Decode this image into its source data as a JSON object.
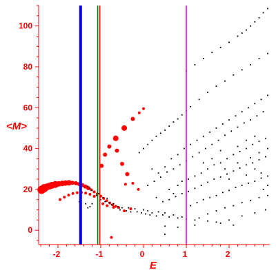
{
  "chart_data": {
    "type": "scatter",
    "title": "",
    "xlabel": "E",
    "ylabel": "<M>",
    "xlim": [
      -2.45,
      2.95
    ],
    "ylim": [
      -7,
      110
    ],
    "xticks": [
      -2,
      -1,
      0,
      1,
      2
    ],
    "xtick_labels": [
      "-2",
      "-1",
      "0",
      "1",
      "2"
    ],
    "yticks": [
      0,
      20,
      40,
      60,
      80,
      100
    ],
    "ytick_labels": [
      "0",
      "20",
      "40",
      "60",
      "80",
      "100"
    ],
    "grid": false,
    "legend": "none",
    "colors": {
      "axis": "#ff0000",
      "text": "#ff0000",
      "blue_line": "#0000ff",
      "green_line": "#008000",
      "red_line": "#ff0000",
      "magenta_line": "#ff00ff",
      "black_points": "#000000",
      "red_points": "#ff0000"
    },
    "vertical_lines": [
      {
        "x": -1.47,
        "color": "#0000ff",
        "width": "thick"
      },
      {
        "x": -1.07,
        "color": "#008000",
        "width": "thin"
      },
      {
        "x": -1.02,
        "color": "#ff0000",
        "width": "thin"
      },
      {
        "x": 1.0,
        "color": "#ff00ff",
        "width": "thin"
      }
    ],
    "series": [
      {
        "color": "#ff0000",
        "style": "markers of varying size",
        "points": [
          [
            -2.38,
            19.8,
            6
          ],
          [
            -2.32,
            20.6,
            6
          ],
          [
            -2.26,
            21.2,
            5
          ],
          [
            -2.2,
            21.6,
            5
          ],
          [
            -2.14,
            22.0,
            5
          ],
          [
            -2.06,
            22.4,
            5
          ],
          [
            -1.98,
            22.7,
            4
          ],
          [
            -1.9,
            22.9,
            4
          ],
          [
            -1.82,
            23.1,
            4
          ],
          [
            -1.74,
            23.2,
            4
          ],
          [
            -1.66,
            23.2,
            3
          ],
          [
            -1.58,
            23.0,
            3
          ],
          [
            -1.5,
            22.6,
            3
          ],
          [
            -1.43,
            22.1,
            3
          ],
          [
            -1.36,
            21.4,
            3
          ],
          [
            -1.29,
            20.6,
            3
          ],
          [
            -1.22,
            19.8,
            2
          ],
          [
            -1.15,
            18.8,
            2
          ],
          [
            -1.08,
            17.8,
            2
          ],
          [
            -1.0,
            16.7,
            2
          ],
          [
            -0.93,
            15.6,
            2
          ],
          [
            -0.86,
            14.5,
            2
          ],
          [
            -0.79,
            13.4,
            2
          ],
          [
            -0.72,
            12.5,
            2
          ],
          [
            -0.65,
            11.7,
            2
          ],
          [
            -0.58,
            11.1,
            2
          ],
          [
            -1.95,
            15.0,
            2
          ],
          [
            -1.85,
            16.2,
            2
          ],
          [
            -1.75,
            17.2,
            2
          ],
          [
            -1.65,
            18.0,
            2
          ],
          [
            -1.55,
            18.4,
            2
          ],
          [
            -1.45,
            18.5,
            2
          ],
          [
            -1.35,
            18.2,
            2
          ],
          [
            -1.25,
            17.6,
            2
          ],
          [
            -1.15,
            16.6,
            2
          ],
          [
            -0.98,
            31.5,
            3
          ],
          [
            -0.9,
            37.0,
            3
          ],
          [
            -0.8,
            41.0,
            3
          ],
          [
            -0.65,
            45.0,
            4
          ],
          [
            -0.45,
            50.0,
            4
          ],
          [
            -0.25,
            54.5,
            3
          ],
          [
            -0.1,
            57.5,
            2
          ],
          [
            0.0,
            59.5,
            2
          ],
          [
            -0.62,
            39.0,
            3
          ],
          [
            -0.5,
            32.5,
            3
          ],
          [
            -0.38,
            27.5,
            3
          ],
          [
            -0.25,
            23.0,
            2
          ],
          [
            -0.12,
            20.0,
            2
          ],
          [
            -0.95,
            13.0,
            2
          ],
          [
            -0.85,
            12.0,
            2
          ],
          [
            -0.7,
            11.2,
            2
          ],
          [
            -0.45,
            9.5,
            2
          ],
          [
            -0.75,
            -3.5,
            2
          ],
          [
            -0.3,
            10.5,
            2
          ],
          [
            -0.42,
            22.5,
            2
          ]
        ]
      },
      {
        "color": "#000000",
        "style": "small dots",
        "points": [
          [
            -1.3,
            21.5
          ],
          [
            -1.25,
            20.5
          ],
          [
            -1.2,
            19.5
          ],
          [
            -1.1,
            17.0
          ],
          [
            -1.05,
            18.0
          ],
          [
            -1.0,
            15.0
          ],
          [
            -0.95,
            16.0
          ],
          [
            -0.9,
            14.0
          ],
          [
            -0.85,
            15.5
          ],
          [
            -0.8,
            13.5
          ],
          [
            -0.75,
            12.5
          ],
          [
            -0.7,
            13.0
          ],
          [
            -0.6,
            11.5
          ],
          [
            -0.55,
            10.0
          ],
          [
            -0.5,
            11.0
          ],
          [
            -0.4,
            9.5
          ],
          [
            -0.35,
            11.0
          ],
          [
            -0.3,
            9.0
          ],
          [
            -0.2,
            10.5
          ],
          [
            -0.15,
            9.0
          ],
          [
            -0.05,
            8.5
          ],
          [
            0.0,
            10.0
          ],
          [
            0.05,
            8.0
          ],
          [
            0.1,
            9.5
          ],
          [
            0.15,
            7.5
          ],
          [
            0.2,
            8.5
          ],
          [
            0.3,
            7.0
          ],
          [
            0.35,
            9.0
          ],
          [
            0.45,
            7.5
          ],
          [
            0.5,
            8.5
          ],
          [
            0.6,
            6.5
          ],
          [
            0.7,
            7.5
          ],
          [
            0.8,
            6.0
          ],
          [
            0.9,
            6.5
          ],
          [
            1.0,
            5.5
          ],
          [
            1.2,
            5.0
          ],
          [
            1.5,
            4.5
          ],
          [
            1.8,
            3.5
          ],
          [
            2.1,
            2.5
          ],
          [
            -1.35,
            13.0
          ],
          [
            -1.3,
            11.0
          ],
          [
            -1.5,
            14.0
          ],
          [
            -1.25,
            11.5
          ],
          [
            -1.2,
            13.0
          ],
          [
            -0.1,
            38.0
          ],
          [
            0.0,
            40.0
          ],
          [
            0.1,
            42.0
          ],
          [
            0.2,
            44.0
          ],
          [
            0.3,
            46.0
          ],
          [
            0.4,
            47.5
          ],
          [
            0.5,
            49.0
          ],
          [
            0.6,
            51.0
          ],
          [
            0.7,
            53.0
          ],
          [
            0.8,
            54.5
          ],
          [
            0.9,
            56.5
          ],
          [
            1.0,
            58.5
          ],
          [
            1.1,
            60.5
          ],
          [
            1.3,
            64.0
          ],
          [
            1.5,
            67.5
          ],
          [
            1.7,
            70.5
          ],
          [
            1.9,
            73.0
          ],
          [
            2.1,
            76.0
          ],
          [
            2.3,
            78.5
          ],
          [
            2.5,
            81.0
          ],
          [
            2.7,
            84.0
          ],
          [
            2.9,
            86.5
          ],
          [
            1.0,
            78.0
          ],
          [
            1.2,
            81.0
          ],
          [
            1.4,
            84.0
          ],
          [
            1.6,
            87.0
          ],
          [
            1.8,
            89.5
          ],
          [
            2.0,
            92.0
          ],
          [
            2.2,
            95.0
          ],
          [
            2.4,
            98.0
          ],
          [
            2.5,
            100.0
          ],
          [
            2.6,
            102.0
          ],
          [
            2.7,
            104.0
          ],
          [
            2.8,
            106.5
          ],
          [
            2.9,
            108.5
          ],
          [
            2.3,
            96.5
          ],
          [
            0.2,
            30.0
          ],
          [
            0.35,
            28.0
          ],
          [
            0.5,
            31.0
          ],
          [
            0.65,
            35.0
          ],
          [
            0.8,
            37.0
          ],
          [
            0.95,
            40.0
          ],
          [
            1.1,
            42.0
          ],
          [
            1.25,
            44.0
          ],
          [
            1.4,
            46.0
          ],
          [
            1.55,
            48.0
          ],
          [
            1.7,
            50.0
          ],
          [
            1.85,
            52.0
          ],
          [
            2.0,
            54.0
          ],
          [
            2.15,
            56.0
          ],
          [
            2.3,
            58.0
          ],
          [
            2.45,
            60.0
          ],
          [
            2.6,
            62.0
          ],
          [
            2.75,
            64.0
          ],
          [
            2.9,
            66.0
          ],
          [
            0.1,
            22.0
          ],
          [
            0.25,
            24.0
          ],
          [
            0.4,
            26.0
          ],
          [
            0.55,
            28.5
          ],
          [
            0.7,
            30.0
          ],
          [
            0.85,
            32.0
          ],
          [
            1.0,
            34.0
          ],
          [
            1.15,
            36.0
          ],
          [
            1.3,
            38.0
          ],
          [
            1.45,
            40.0
          ],
          [
            1.6,
            42.0
          ],
          [
            1.75,
            44.0
          ],
          [
            1.9,
            46.5
          ],
          [
            2.05,
            48.5
          ],
          [
            2.2,
            50.5
          ],
          [
            2.35,
            52.5
          ],
          [
            2.5,
            54.0
          ],
          [
            2.65,
            56.0
          ],
          [
            2.8,
            58.0
          ],
          [
            0.6,
            20.0
          ],
          [
            0.7,
            18.0
          ],
          [
            0.8,
            22.0
          ],
          [
            0.9,
            24.0
          ],
          [
            1.05,
            25.0
          ],
          [
            1.2,
            26.5
          ],
          [
            1.35,
            28.0
          ],
          [
            1.5,
            30.0
          ],
          [
            1.65,
            32.0
          ],
          [
            1.8,
            33.0
          ],
          [
            1.95,
            35.0
          ],
          [
            2.1,
            37.0
          ],
          [
            2.25,
            38.5
          ],
          [
            2.4,
            40.0
          ],
          [
            2.55,
            42.0
          ],
          [
            2.7,
            43.5
          ],
          [
            2.85,
            45.0
          ],
          [
            0.3,
            16.0
          ],
          [
            0.45,
            14.0
          ],
          [
            0.6,
            15.0
          ],
          [
            0.75,
            16.5
          ],
          [
            0.9,
            18.0
          ],
          [
            1.05,
            19.0
          ],
          [
            1.2,
            20.5
          ],
          [
            1.35,
            22.0
          ],
          [
            1.5,
            23.5
          ],
          [
            1.65,
            25.0
          ],
          [
            1.8,
            26.0
          ],
          [
            1.95,
            27.5
          ],
          [
            2.1,
            29.0
          ],
          [
            2.25,
            30.5
          ],
          [
            2.4,
            32.0
          ],
          [
            2.55,
            33.0
          ],
          [
            2.7,
            34.5
          ],
          [
            2.85,
            36.0
          ],
          [
            1.1,
            12.0
          ],
          [
            1.25,
            13.5
          ],
          [
            1.4,
            15.0
          ],
          [
            1.55,
            16.0
          ],
          [
            1.7,
            17.0
          ],
          [
            1.85,
            18.5
          ],
          [
            2.0,
            19.5
          ],
          [
            2.15,
            21.0
          ],
          [
            2.3,
            22.0
          ],
          [
            2.45,
            23.0
          ],
          [
            2.6,
            24.0
          ],
          [
            2.75,
            25.5
          ],
          [
            2.9,
            26.5
          ],
          [
            1.3,
            6.0
          ],
          [
            1.5,
            8.0
          ],
          [
            1.7,
            9.5
          ],
          [
            1.9,
            11.0
          ],
          [
            2.1,
            12.0
          ],
          [
            2.3,
            13.5
          ],
          [
            2.5,
            14.5
          ],
          [
            2.7,
            16.0
          ],
          [
            2.9,
            17.0
          ],
          [
            0.5,
            2.0
          ],
          [
            0.8,
            1.5
          ],
          [
            1.2,
            2.5
          ],
          [
            1.7,
            4.0
          ],
          [
            2.0,
            5.0
          ],
          [
            2.3,
            7.0
          ],
          [
            2.6,
            8.5
          ],
          [
            2.85,
            10.0
          ],
          [
            0.5,
            -2.0
          ],
          [
            1.9,
            30.0
          ],
          [
            2.0,
            25.0
          ],
          [
            2.2,
            33.0
          ],
          [
            2.4,
            27.0
          ],
          [
            2.6,
            30.0
          ],
          [
            2.8,
            20.0
          ],
          [
            2.5,
            35.5
          ],
          [
            2.7,
            38.0
          ],
          [
            2.9,
            40.0
          ],
          [
            1.6,
            35.0
          ],
          [
            1.4,
            33.0
          ],
          [
            1.8,
            39.0
          ],
          [
            2.9,
            22.0
          ],
          [
            2.75,
            28.0
          ],
          [
            2.6,
            46.0
          ],
          [
            2.4,
            44.0
          ],
          [
            2.2,
            41.0
          ]
        ]
      }
    ]
  }
}
